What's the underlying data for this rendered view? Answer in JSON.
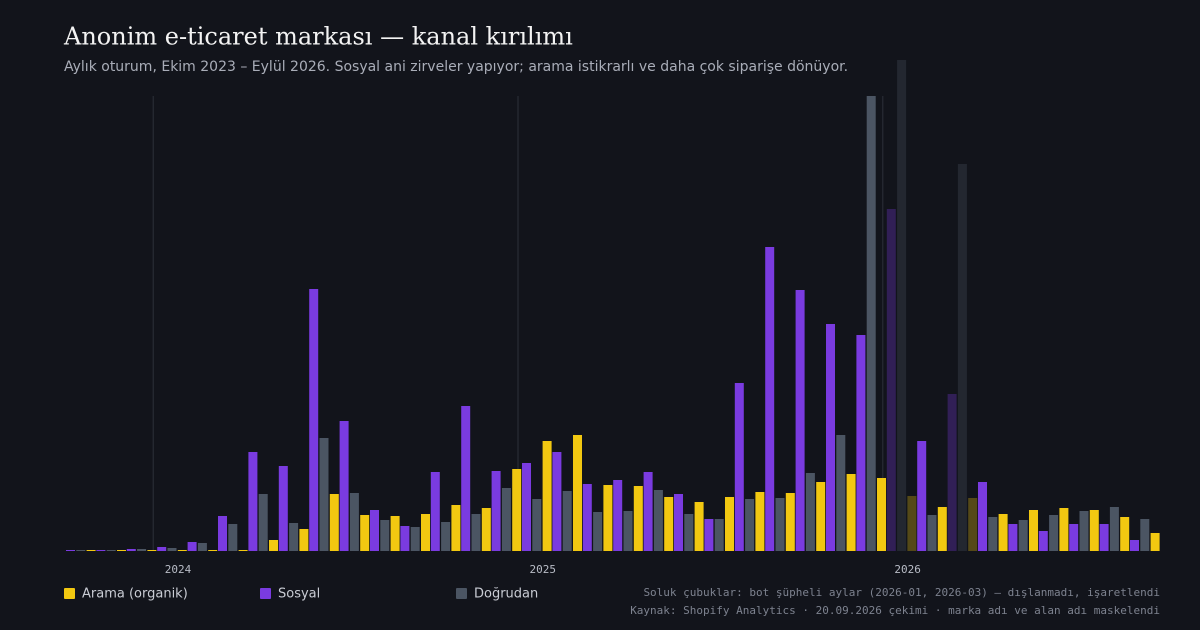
{
  "chart_data": {
    "type": "bar",
    "title": "Anonim e-ticaret markası — kanal kırılımı",
    "subtitle": "Aylık oturum, Ekim 2023 – Eylül 2026. Sosyal ani zirveler yapıyor; arama istikrarlı ve daha çok siparişe dönüyor.",
    "categories": [
      null,
      null,
      null,
      "2024",
      null,
      null,
      null,
      null,
      null,
      null,
      null,
      null,
      null,
      null,
      null,
      "2025",
      null,
      null,
      null,
      null,
      null,
      null,
      null,
      null,
      null,
      null,
      null,
      "2026",
      null,
      null,
      null,
      null,
      null,
      null,
      null,
      null
    ],
    "series": [
      {
        "name": "Arama (organik)",
        "color": "#f2c811",
        "values": [
          1,
          1,
          1,
          1,
          1,
          1,
          11,
          22,
          57,
          36,
          35,
          37,
          46,
          43,
          82,
          110,
          116,
          66,
          65,
          54,
          49,
          54,
          59,
          58,
          69,
          77,
          73,
          55,
          44,
          53,
          37,
          41,
          43,
          41,
          34,
          18
        ]
      },
      {
        "name": "Sosyal",
        "color": "#7a3be0",
        "values": [
          1,
          1,
          2,
          4,
          9,
          35,
          99,
          85,
          262,
          130,
          41,
          25,
          79,
          145,
          80,
          88,
          99,
          67,
          71,
          79,
          57,
          32,
          168,
          304,
          261,
          227,
          216,
          342,
          110,
          157,
          69,
          27,
          20,
          27,
          27,
          11
        ]
      },
      {
        "name": "Doğrudan",
        "color": "#4b5563",
        "values": [
          1,
          1,
          2,
          3,
          8,
          27,
          57,
          28,
          113,
          58,
          31,
          24,
          29,
          37,
          63,
          52,
          60,
          39,
          40,
          61,
          37,
          32,
          52,
          53,
          78,
          116,
          455,
          491,
          36,
          387,
          34,
          31,
          36,
          40,
          44,
          32
        ]
      }
    ],
    "ylim": [
      0,
      500
    ],
    "faded": [
      27,
      29
    ],
    "notes": [
      "Soluk çubuklar: bot şüpheli aylar (2026-01, 2026-03) — dışlanmadı, işaretlendi",
      "Kaynak: Shopify Analytics · 20.09.2026 çekimi · marka adı ve alan adı maskelendi"
    ]
  }
}
